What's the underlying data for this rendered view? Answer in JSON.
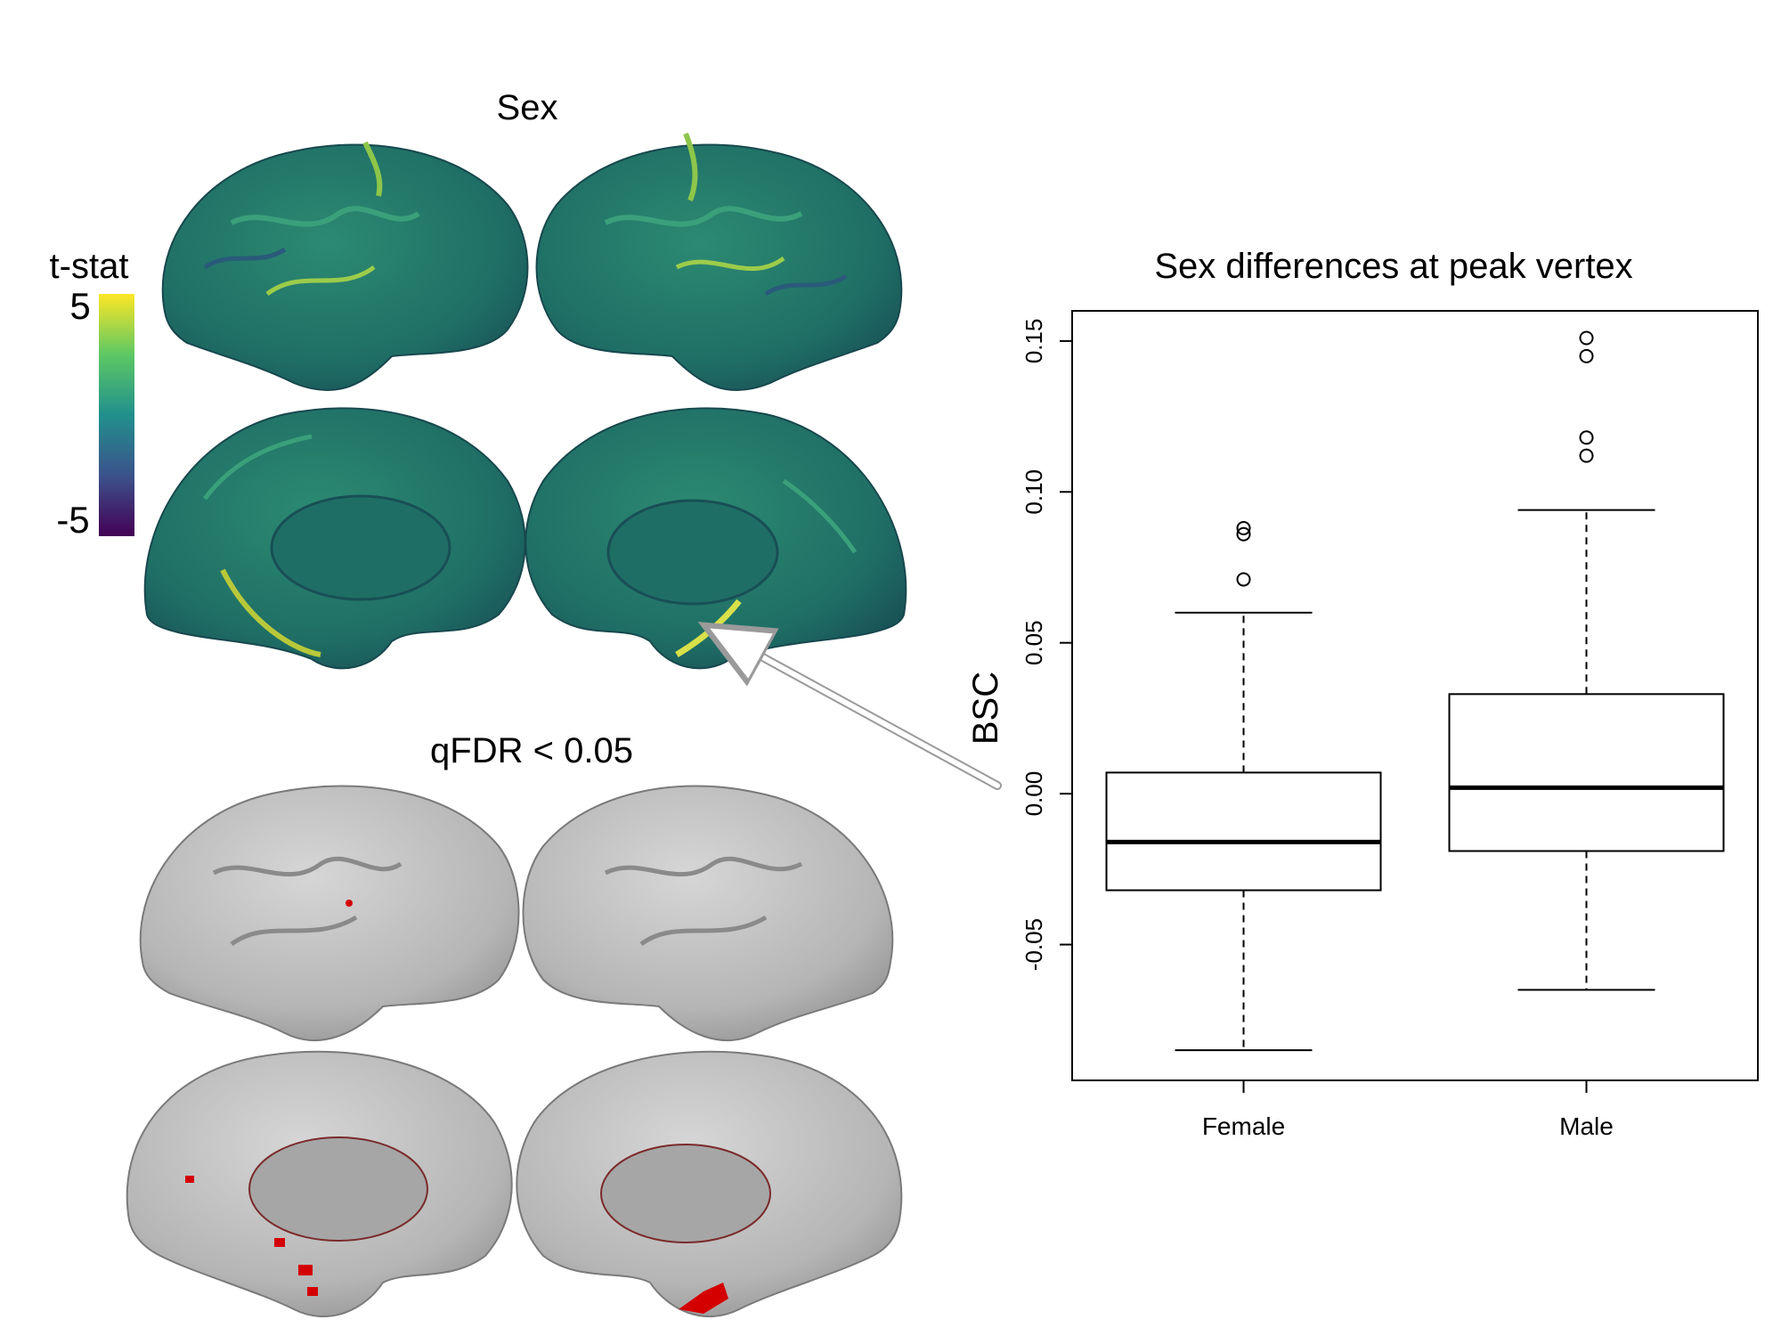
{
  "brain_panel": {
    "title": "Sex",
    "colorbar": {
      "label": "t-stat",
      "max_label": "5",
      "min_label": "-5",
      "max": 5,
      "min": -5,
      "colors": [
        "#440154",
        "#3b528b",
        "#21908d",
        "#5dc863",
        "#fde725"
      ]
    },
    "threshold_title": "qFDR < 0.05",
    "surface_color": "#1f6e65",
    "inflated_color": "#b8b8b8",
    "highlight_color": "#d40000"
  },
  "chart_data": {
    "type": "box",
    "title": "Sex differences at peak vertex",
    "xlabel": "",
    "ylabel": "BSC",
    "categories": [
      "Female",
      "Male"
    ],
    "yticks": [
      -0.05,
      0.0,
      0.05,
      0.1,
      0.15
    ],
    "ytick_labels": [
      "-0.05",
      "0.00",
      "0.05",
      "0.10",
      "0.15"
    ],
    "ylim": [
      -0.095,
      0.16
    ],
    "grid": false,
    "boxes": [
      {
        "name": "Female",
        "whisker_low": -0.085,
        "q1": -0.032,
        "median": -0.016,
        "q3": 0.007,
        "whisker_high": 0.06,
        "outliers": [
          0.071,
          0.086,
          0.088
        ]
      },
      {
        "name": "Male",
        "whisker_low": -0.065,
        "q1": -0.019,
        "median": 0.002,
        "q3": 0.033,
        "whisker_high": 0.094,
        "outliers": [
          0.112,
          0.118,
          0.145,
          0.151
        ]
      }
    ]
  }
}
